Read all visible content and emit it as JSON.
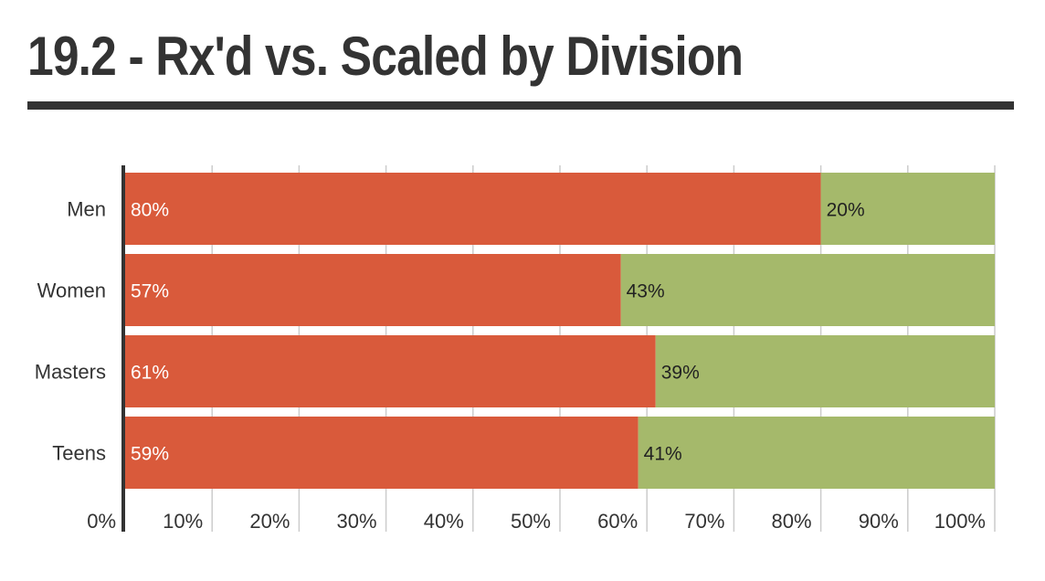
{
  "chart_data": {
    "type": "bar",
    "orientation": "horizontal",
    "stacked": true,
    "title": "19.2 - Rx'd vs. Scaled by Division",
    "categories": [
      "Men",
      "Women",
      "Masters",
      "Teens"
    ],
    "series": [
      {
        "values": [
          80,
          57,
          61,
          59
        ],
        "labels": [
          "80%",
          "57%",
          "61%",
          "59%"
        ],
        "color": "#d95a3b",
        "label_color": "#ffffff"
      },
      {
        "values": [
          20,
          43,
          39,
          41
        ],
        "labels": [
          "20%",
          "43%",
          "39%",
          "41%"
        ],
        "color": "#a5b96b",
        "label_color": "#222222"
      }
    ],
    "xlim": [
      0,
      100
    ],
    "x_ticks": [
      "0%",
      "10%",
      "20%",
      "30%",
      "40%",
      "50%",
      "60%",
      "70%",
      "80%",
      "90%",
      "100%"
    ],
    "grid": true,
    "legend": "none",
    "title_color": "#333333"
  }
}
